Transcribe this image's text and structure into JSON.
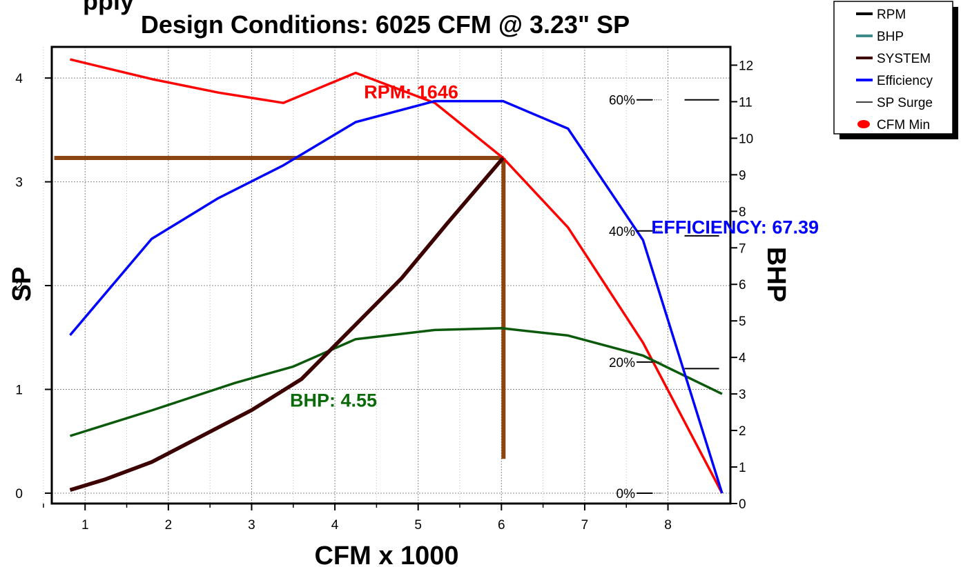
{
  "chart_data": {
    "type": "line",
    "title_cut": "pply",
    "title": "Design Conditions: 6025 CFM @ 3.23\" SP",
    "xlabel": "CFM x 1000",
    "ylabel": "SP",
    "y2label": "BHP",
    "xlim": [
      0.6,
      8.75
    ],
    "ylim": [
      -0.1,
      4.3
    ],
    "y2lim": [
      0,
      12.5
    ],
    "x_ticks": [
      "1",
      "2",
      "3",
      "4",
      "5",
      "6",
      "7",
      "8"
    ],
    "y_ticks": [
      "0",
      "1",
      "2",
      "3",
      "4"
    ],
    "y2_ticks": [
      "0",
      "1",
      "2",
      "3",
      "4",
      "5",
      "6",
      "7",
      "8",
      "9",
      "10",
      "11",
      "12"
    ],
    "efficiency_ticks": [
      {
        "label": "0%",
        "value": 0
      },
      {
        "label": "20%",
        "value": 20
      },
      {
        "label": "40%",
        "value": 40
      },
      {
        "label": "60%",
        "value": 60
      }
    ],
    "grid": true,
    "design_point": {
      "cfm": 6.025,
      "sp": 3.23
    },
    "design_lines": {
      "hline_x_start": 0.63,
      "vline_y_end": 0.33,
      "color": "#8B4513"
    },
    "sp_surge_marks": [
      {
        "x": 8.0,
        "sp": 1.2
      },
      {
        "x": 8.0,
        "sp": 2.48
      },
      {
        "x": 8.0,
        "sp": 3.79
      }
    ],
    "series": [
      {
        "name": "RPM",
        "axis": "sp",
        "color": "#ff0000",
        "x": [
          0.82,
          1.8,
          2.6,
          3.38,
          4.25,
          5.2,
          6.02,
          6.8,
          7.7,
          8.65
        ],
        "y": [
          4.18,
          3.99,
          3.86,
          3.76,
          4.05,
          3.76,
          3.23,
          2.56,
          1.45,
          0.0
        ]
      },
      {
        "name": "BHP",
        "axis": "bhp",
        "color": "#0b5a0b",
        "x": [
          0.82,
          1.8,
          2.8,
          3.5,
          4.25,
          5.2,
          6.0,
          6.8,
          7.7,
          8.65
        ],
        "y": [
          1.85,
          2.55,
          3.3,
          3.75,
          4.5,
          4.75,
          4.8,
          4.6,
          4.05,
          3.0
        ]
      },
      {
        "name": "SYSTEM",
        "axis": "sp",
        "color": "#3d0000",
        "x": [
          0.82,
          1.23,
          1.8,
          2.4,
          3.0,
          3.6,
          4.22,
          4.8,
          5.35,
          6.02
        ],
        "y": [
          0.03,
          0.13,
          0.3,
          0.55,
          0.8,
          1.1,
          1.6,
          2.07,
          2.6,
          3.23
        ]
      },
      {
        "name": "Efficiency",
        "axis": "eff",
        "color": "#0000ff",
        "x": [
          0.82,
          1.8,
          2.6,
          3.38,
          4.25,
          5.2,
          6.02,
          6.8,
          7.7,
          8.65
        ],
        "y": [
          24.1,
          38.8,
          45.0,
          50.0,
          56.6,
          59.8,
          59.8,
          55.6,
          38.6,
          0.0
        ]
      }
    ],
    "legend": {
      "position": "top-right",
      "entries": [
        {
          "label": "RPM",
          "color": "#000000",
          "symbol": "line-thick"
        },
        {
          "label": "BHP",
          "color": "#3f8a8a",
          "symbol": "line-thick"
        },
        {
          "label": "SYSTEM",
          "color": "#3d0000",
          "symbol": "line-thick"
        },
        {
          "label": "Efficiency",
          "color": "#0000ff",
          "symbol": "line-thick"
        },
        {
          "label": "SP Surge",
          "color": "#000000",
          "symbol": "line-thin"
        },
        {
          "label": "CFM Min",
          "color": "#ff0000",
          "symbol": "dot"
        }
      ]
    },
    "annotations": [
      {
        "text": "RPM: 1646",
        "color": "#ff0000",
        "x": 4.35,
        "y": 3.87
      },
      {
        "text": "EFFICIENCY: 67.39",
        "color": "#0000ff",
        "x": 7.8,
        "y": 2.57
      },
      {
        "text": "BHP: 4.55",
        "color": "#0b6b0b",
        "x": 3.46,
        "y": 0.9
      }
    ]
  }
}
